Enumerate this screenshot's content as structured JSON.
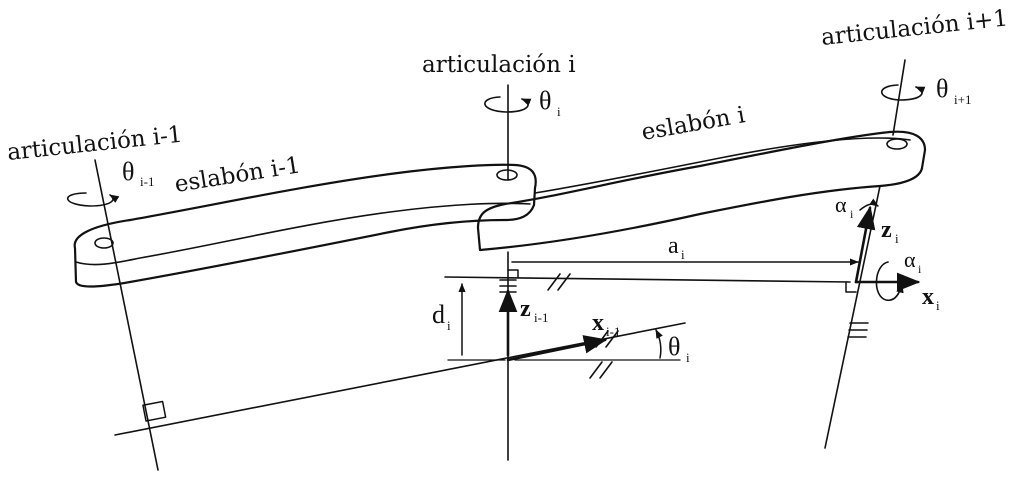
{
  "joints": {
    "prev": {
      "label": "articulación i-1",
      "theta": "θ",
      "theta_sub": "i-1"
    },
    "cur": {
      "label": "articulación i",
      "theta": "θ",
      "theta_sub": "i"
    },
    "next": {
      "label": "articulación i+1",
      "theta": "θ",
      "theta_sub": "i+1"
    }
  },
  "links": {
    "prev": "eslabón i-1",
    "cur": "eslabón i"
  },
  "params": {
    "a": {
      "sym": "a",
      "sub": "i"
    },
    "d": {
      "sym": "d",
      "sub": "i"
    },
    "alpha_top": {
      "sym": "α",
      "sub": "i"
    },
    "alpha_side": {
      "sym": "α",
      "sub": "i"
    },
    "theta": {
      "sym": "θ",
      "sub": "i"
    }
  },
  "axes": {
    "z_prev": {
      "sym": "z",
      "sub": "i-1"
    },
    "x_prev": {
      "sym": "x",
      "sub": "i-1"
    },
    "z_cur": {
      "sym": "z",
      "sub": "i"
    },
    "x_cur": {
      "sym": "x",
      "sub": "i"
    }
  }
}
